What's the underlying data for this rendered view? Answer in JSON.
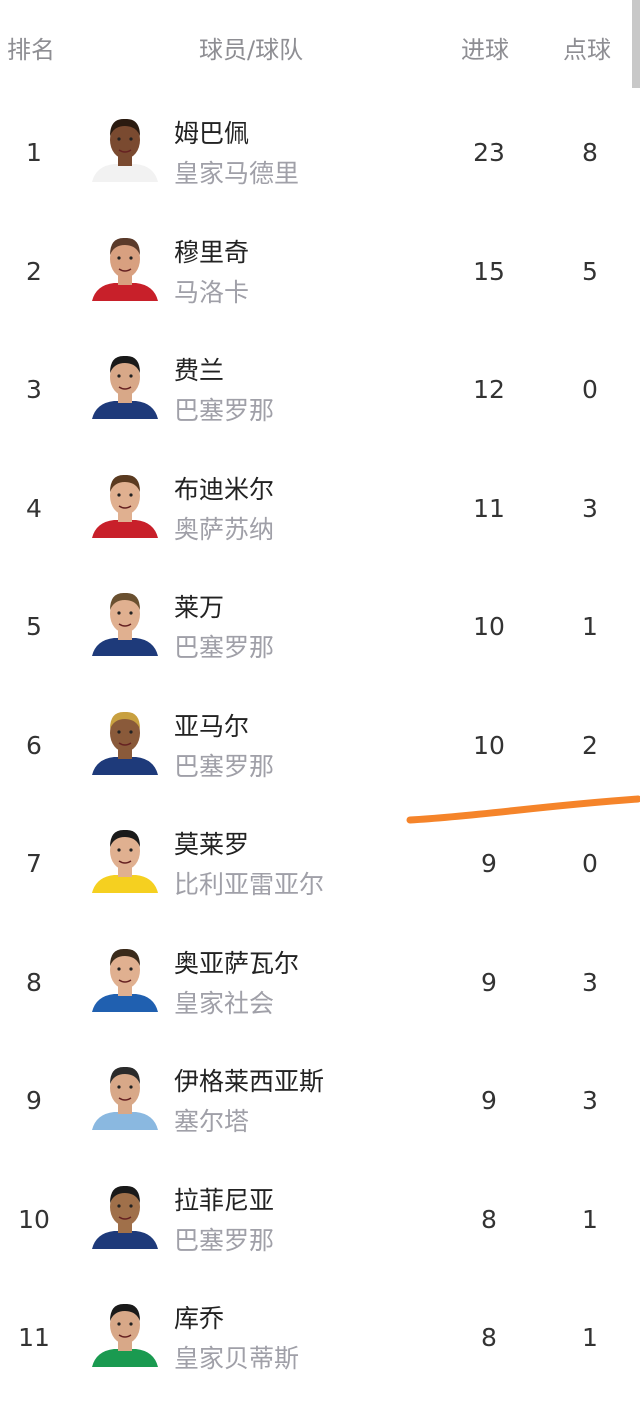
{
  "header": {
    "rank": "排名",
    "player_team": "球员/球队",
    "goals": "进球",
    "penalties": "点球"
  },
  "annotation_color": "#f5842a",
  "rows": [
    {
      "rank": "1",
      "name": "姆巴佩",
      "team": "皇家马德里",
      "goals": "23",
      "penalties": "8",
      "shirt": "#f2f2f2",
      "skin": "#7a4a30",
      "hair": "#2a1a10"
    },
    {
      "rank": "2",
      "name": "穆里奇",
      "team": "马洛卡",
      "goals": "15",
      "penalties": "5",
      "shirt": "#c8202a",
      "skin": "#d8a080",
      "hair": "#5a3a2a"
    },
    {
      "rank": "3",
      "name": "费兰",
      "team": "巴塞罗那",
      "goals": "12",
      "penalties": "0",
      "shirt": "#1e3a7a",
      "skin": "#d8a888",
      "hair": "#1a1a1a"
    },
    {
      "rank": "4",
      "name": "布迪米尔",
      "team": "奥萨苏纳",
      "goals": "11",
      "penalties": "3",
      "shirt": "#c8202a",
      "skin": "#e0b090",
      "hair": "#5a3a20"
    },
    {
      "rank": "5",
      "name": "莱万",
      "team": "巴塞罗那",
      "goals": "10",
      "penalties": "1",
      "shirt": "#1e3a7a",
      "skin": "#e0b090",
      "hair": "#6a5030"
    },
    {
      "rank": "6",
      "name": "亚马尔",
      "team": "巴塞罗那",
      "goals": "10",
      "penalties": "2",
      "shirt": "#1e3a7a",
      "skin": "#8a5a3a",
      "hair": "#c8a040"
    },
    {
      "rank": "7",
      "name": "莫莱罗",
      "team": "比利亚雷亚尔",
      "goals": "9",
      "penalties": "0",
      "shirt": "#f5d020",
      "skin": "#e0b090",
      "hair": "#1a1a1a"
    },
    {
      "rank": "8",
      "name": "奥亚萨瓦尔",
      "team": "皇家社会",
      "goals": "9",
      "penalties": "3",
      "shirt": "#2060b0",
      "skin": "#e0b090",
      "hair": "#3a2a1a"
    },
    {
      "rank": "9",
      "name": "伊格莱西亚斯",
      "team": "塞尔塔",
      "goals": "9",
      "penalties": "3",
      "shirt": "#8ab8e0",
      "skin": "#d8a888",
      "hair": "#2a2a2a"
    },
    {
      "rank": "10",
      "name": "拉菲尼亚",
      "team": "巴塞罗那",
      "goals": "8",
      "penalties": "1",
      "shirt": "#1e3a7a",
      "skin": "#a0704a",
      "hair": "#1a1a1a"
    },
    {
      "rank": "11",
      "name": "库乔",
      "team": "皇家贝蒂斯",
      "goals": "8",
      "penalties": "1",
      "shirt": "#1a9a50",
      "skin": "#d8a888",
      "hair": "#1a1a1a"
    }
  ]
}
